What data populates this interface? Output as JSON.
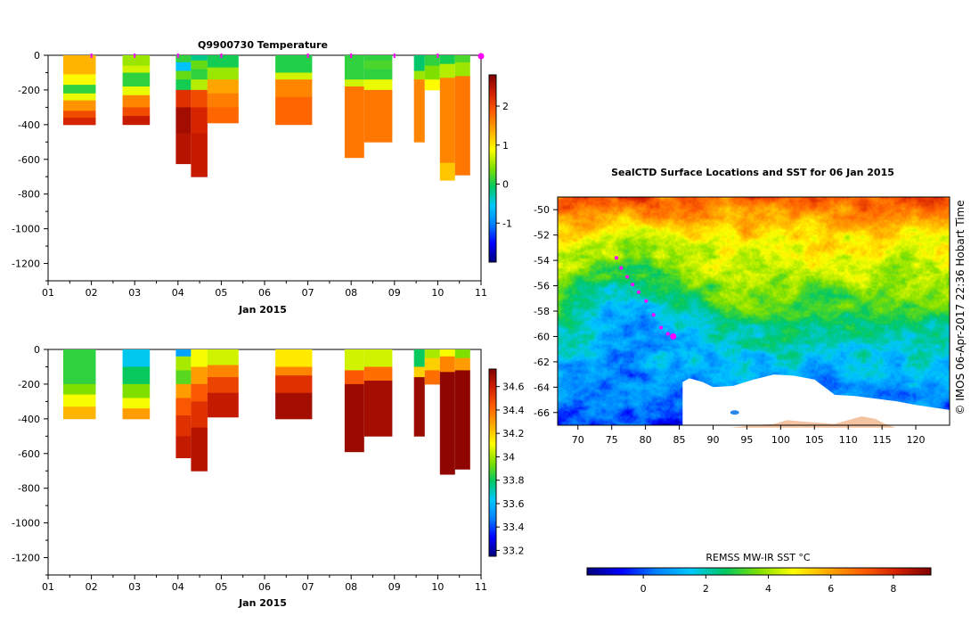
{
  "chart_data": [
    {
      "type": "heatmap",
      "id": "temperature",
      "title": "Q9900730  Temperature",
      "xlabel": "Jan 2015",
      "ylabel": "",
      "x_ticks": [
        "01",
        "02",
        "03",
        "04",
        "05",
        "06",
        "07",
        "08",
        "09",
        "10",
        "11"
      ],
      "x_range": [
        1,
        11
      ],
      "y_ticks": [
        0,
        -200,
        -400,
        -600,
        -800,
        -1000,
        -1200
      ],
      "y_range": [
        -1300,
        0
      ],
      "profile_days": [
        2,
        3,
        4,
        5,
        7,
        8,
        9,
        10,
        11
      ],
      "colorbar": {
        "ticks": [
          2,
          1,
          0,
          -1
        ],
        "range": [
          -2,
          2.8
        ]
      },
      "profiles": [
        {
          "x0": 1.35,
          "x1": 2.1,
          "depth": 400,
          "layers": [
            [
              0,
              110,
              1.3
            ],
            [
              110,
              170,
              0.9
            ],
            [
              170,
              220,
              0.1
            ],
            [
              220,
              260,
              0.8
            ],
            [
              260,
              320,
              1.5
            ],
            [
              320,
              360,
              2.0
            ],
            [
              360,
              400,
              2.3
            ]
          ]
        },
        {
          "x0": 2.72,
          "x1": 3.35,
          "depth": 400,
          "layers": [
            [
              0,
              60,
              0.5
            ],
            [
              60,
              100,
              0.7
            ],
            [
              100,
              180,
              0.1
            ],
            [
              180,
              230,
              0.8
            ],
            [
              230,
              300,
              1.6
            ],
            [
              300,
              350,
              2.0
            ],
            [
              350,
              400,
              2.4
            ]
          ]
        },
        {
          "x0": 3.95,
          "x1": 4.3,
          "depth": 625,
          "layers": [
            [
              0,
              40,
              0.1
            ],
            [
              40,
              90,
              -0.6
            ],
            [
              90,
              140,
              0.3
            ],
            [
              140,
              200,
              0.0
            ],
            [
              200,
              300,
              2.2
            ],
            [
              300,
              450,
              2.6
            ],
            [
              450,
              625,
              2.5
            ]
          ]
        },
        {
          "x0": 4.3,
          "x1": 4.68,
          "depth": 700,
          "layers": [
            [
              0,
              30,
              -0.2
            ],
            [
              30,
              80,
              0.3
            ],
            [
              80,
              140,
              0.1
            ],
            [
              140,
              200,
              0.6
            ],
            [
              200,
              300,
              2.0
            ],
            [
              300,
              450,
              2.3
            ],
            [
              450,
              700,
              2.4
            ]
          ]
        },
        {
          "x0": 4.68,
          "x1": 5.4,
          "depth": 390,
          "layers": [
            [
              0,
              70,
              0.0
            ],
            [
              70,
              140,
              0.5
            ],
            [
              140,
              220,
              1.4
            ],
            [
              220,
              300,
              1.65
            ],
            [
              300,
              390,
              1.8
            ]
          ]
        },
        {
          "x0": 6.25,
          "x1": 7.1,
          "depth": 400,
          "layers": [
            [
              0,
              100,
              0.05
            ],
            [
              100,
              140,
              0.7
            ],
            [
              140,
              240,
              1.6
            ],
            [
              240,
              400,
              1.8
            ]
          ]
        },
        {
          "x0": 7.85,
          "x1": 8.3,
          "depth": 590,
          "layers": [
            [
              0,
              140,
              0.1
            ],
            [
              140,
              180,
              0.7
            ],
            [
              180,
              590,
              1.7
            ]
          ]
        },
        {
          "x0": 8.3,
          "x1": 8.95,
          "depth": 500,
          "layers": [
            [
              0,
              30,
              0.1
            ],
            [
              30,
              80,
              0.2
            ],
            [
              80,
              140,
              0.1
            ],
            [
              140,
              200,
              0.8
            ],
            [
              200,
              500,
              1.7
            ]
          ]
        },
        {
          "x0": 9.45,
          "x1": 9.7,
          "depth": 500,
          "layers": [
            [
              0,
              90,
              -0.1
            ],
            [
              90,
              140,
              0.5
            ],
            [
              140,
              500,
              1.6
            ]
          ]
        },
        {
          "x0": 9.7,
          "x1": 10.05,
          "depth": 200,
          "layers": [
            [
              0,
              60,
              0.1
            ],
            [
              60,
              140,
              0.4
            ],
            [
              140,
              200,
              0.9
            ]
          ]
        },
        {
          "x0": 10.05,
          "x1": 10.4,
          "depth": 720,
          "layers": [
            [
              0,
              50,
              0.0
            ],
            [
              50,
              130,
              0.6
            ],
            [
              130,
              620,
              1.6
            ],
            [
              620,
              720,
              1.2
            ]
          ]
        },
        {
          "x0": 10.4,
          "x1": 10.75,
          "depth": 690,
          "layers": [
            [
              0,
              40,
              0.2
            ],
            [
              40,
              120,
              0.5
            ],
            [
              120,
              690,
              1.7
            ]
          ]
        }
      ]
    },
    {
      "type": "heatmap",
      "id": "salinity",
      "title": "",
      "xlabel": "Jan 2015",
      "ylabel": "",
      "x_ticks": [
        "01",
        "02",
        "03",
        "04",
        "05",
        "06",
        "07",
        "08",
        "09",
        "10",
        "11"
      ],
      "x_range": [
        1,
        11
      ],
      "y_ticks": [
        0,
        -200,
        -400,
        -600,
        -800,
        -1000,
        -1200
      ],
      "y_range": [
        -1300,
        0
      ],
      "colorbar": {
        "ticks": [
          34.6,
          34.4,
          34.2,
          34,
          33.8,
          33.6,
          33.4,
          33.2
        ],
        "range": [
          33.15,
          34.75
        ]
      },
      "profiles": [
        {
          "x0": 1.35,
          "x1": 2.1,
          "depth": 400,
          "layers": [
            [
              0,
              200,
              33.85
            ],
            [
              200,
              260,
              33.95
            ],
            [
              260,
              330,
              34.1
            ],
            [
              330,
              400,
              34.25
            ]
          ]
        },
        {
          "x0": 2.72,
          "x1": 3.35,
          "depth": 400,
          "layers": [
            [
              0,
              100,
              33.65
            ],
            [
              100,
              200,
              33.8
            ],
            [
              200,
              280,
              33.95
            ],
            [
              280,
              340,
              34.1
            ],
            [
              340,
              400,
              34.3
            ]
          ]
        },
        {
          "x0": 3.95,
          "x1": 4.3,
          "depth": 625,
          "layers": [
            [
              0,
              40,
              33.55
            ],
            [
              40,
              120,
              34.0
            ],
            [
              120,
              200,
              33.9
            ],
            [
              200,
              280,
              34.3
            ],
            [
              280,
              380,
              34.45
            ],
            [
              380,
              500,
              34.55
            ],
            [
              500,
              625,
              34.62
            ]
          ]
        },
        {
          "x0": 4.3,
          "x1": 4.68,
          "depth": 700,
          "layers": [
            [
              0,
              100,
              34.1
            ],
            [
              100,
              200,
              34.3
            ],
            [
              200,
              300,
              34.45
            ],
            [
              300,
              450,
              34.55
            ],
            [
              450,
              700,
              34.65
            ]
          ]
        },
        {
          "x0": 4.68,
          "x1": 5.4,
          "depth": 390,
          "layers": [
            [
              0,
              90,
              34.05
            ],
            [
              90,
              160,
              34.35
            ],
            [
              160,
              250,
              34.5
            ],
            [
              250,
              390,
              34.62
            ]
          ]
        },
        {
          "x0": 6.25,
          "x1": 7.1,
          "depth": 400,
          "layers": [
            [
              0,
              100,
              34.15
            ],
            [
              100,
              150,
              34.35
            ],
            [
              150,
              250,
              34.55
            ],
            [
              250,
              400,
              34.68
            ]
          ]
        },
        {
          "x0": 7.85,
          "x1": 8.3,
          "depth": 590,
          "layers": [
            [
              0,
              120,
              34.05
            ],
            [
              120,
              200,
              34.45
            ],
            [
              200,
              590,
              34.7
            ]
          ]
        },
        {
          "x0": 8.3,
          "x1": 8.95,
          "depth": 500,
          "layers": [
            [
              0,
              100,
              34.05
            ],
            [
              100,
              180,
              34.4
            ],
            [
              180,
              500,
              34.68
            ]
          ]
        },
        {
          "x0": 9.45,
          "x1": 9.7,
          "depth": 500,
          "layers": [
            [
              0,
              100,
              33.8
            ],
            [
              100,
              160,
              34.2
            ],
            [
              160,
              500,
              34.7
            ]
          ]
        },
        {
          "x0": 9.7,
          "x1": 10.05,
          "depth": 200,
          "layers": [
            [
              0,
              50,
              34.0
            ],
            [
              50,
              120,
              34.2
            ],
            [
              120,
              200,
              34.4
            ]
          ]
        },
        {
          "x0": 10.05,
          "x1": 10.4,
          "depth": 720,
          "layers": [
            [
              0,
              40,
              34.1
            ],
            [
              40,
              130,
              34.35
            ],
            [
              130,
              720,
              34.72
            ]
          ]
        },
        {
          "x0": 10.4,
          "x1": 10.75,
          "depth": 690,
          "layers": [
            [
              0,
              50,
              33.95
            ],
            [
              50,
              120,
              34.3
            ],
            [
              120,
              690,
              34.72
            ]
          ]
        }
      ]
    },
    {
      "type": "heatmap",
      "id": "sst-map",
      "title": "SealCTD Surface Locations and SST for 06 Jan 2015",
      "xlabel": "",
      "ylabel": "",
      "x_ticks": [
        70,
        75,
        80,
        85,
        90,
        95,
        100,
        105,
        110,
        115,
        120
      ],
      "x_range": [
        67,
        125
      ],
      "y_ticks": [
        -50,
        -52,
        -54,
        -56,
        -58,
        -60,
        -62,
        -64,
        -66
      ],
      "y_range": [
        -67,
        -49
      ],
      "track": {
        "lon": [
          75.7,
          76.4,
          77.3,
          78.1,
          79.0,
          80.1,
          81.2,
          82.3,
          83.3,
          84.1
        ],
        "lat": [
          -53.8,
          -54.6,
          -55.3,
          -55.9,
          -56.5,
          -57.2,
          -58.3,
          -59.3,
          -59.8,
          -60.0
        ]
      },
      "colorbar": {
        "label": "REMSS MW-IR SST °C",
        "ticks": [
          0,
          2,
          4,
          6,
          8
        ],
        "range": [
          -1.8,
          9.2
        ]
      }
    }
  ],
  "map_credit": "© IMOS 06-Apr-2017 22:36 Hobart Time",
  "colors": {
    "colormap": [
      "#00007f",
      "#0000ff",
      "#007fff",
      "#00c8ff",
      "#00c864",
      "#7fe000",
      "#ffff00",
      "#ffaa00",
      "#ff6000",
      "#d42000",
      "#7f0000"
    ],
    "marker": "#ff00ff",
    "land": "#f4c4a2",
    "ice": "#ffffff"
  }
}
